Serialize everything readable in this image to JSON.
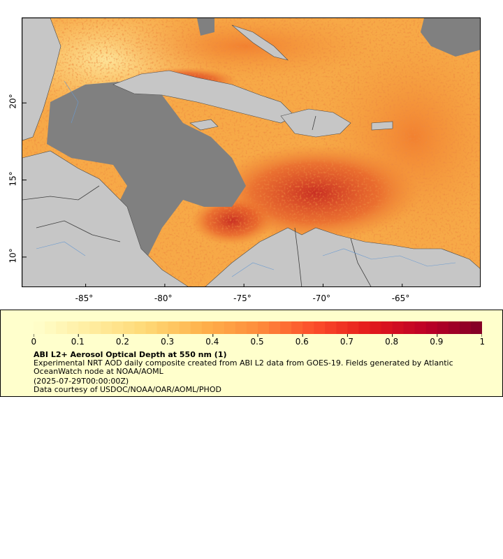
{
  "map": {
    "latitude_labels": [
      "10°",
      "15°",
      "20°"
    ],
    "longitude_labels": [
      "-85°",
      "-80°",
      "-75°",
      "-70°",
      "-65°"
    ],
    "latitude_values": [
      10,
      15,
      20
    ],
    "longitude_values": [
      -85,
      -80,
      -75,
      -70,
      -65
    ],
    "extent": {
      "lon_min": -89,
      "lon_max": -60,
      "lat_min": 8,
      "lat_max": 25.5
    },
    "colors": {
      "land": "#c6c6c6",
      "no_data": "#808080",
      "borders": "#4a4a4a",
      "rivers": "#6a9ad0"
    }
  },
  "legend": {
    "title": "ABI L2+ Aerosol Optical Depth at 550 nm (1)",
    "description": "Experimental NRT AOD daily composite created from ABI L2 data from GOES-19. Fields generated by Atlantic OceanWatch node at NOAA/AOML",
    "date": "(2025-07-29T00:00:00Z)",
    "credit": "Data courtesy of USDOC/NOAA/OAR/AOML/PHOD",
    "tick_labels": [
      "0",
      "0.1",
      "0.2",
      "0.3",
      "0.4",
      "0.5",
      "0.6",
      "0.7",
      "0.8",
      "0.9",
      "1"
    ],
    "range": [
      0,
      1
    ],
    "colors": [
      "#ffffcc",
      "#ffeda0",
      "#fed976",
      "#feb24c",
      "#fd8d3c",
      "#fc4e2a",
      "#e31a1c",
      "#bd0026",
      "#800026"
    ]
  }
}
